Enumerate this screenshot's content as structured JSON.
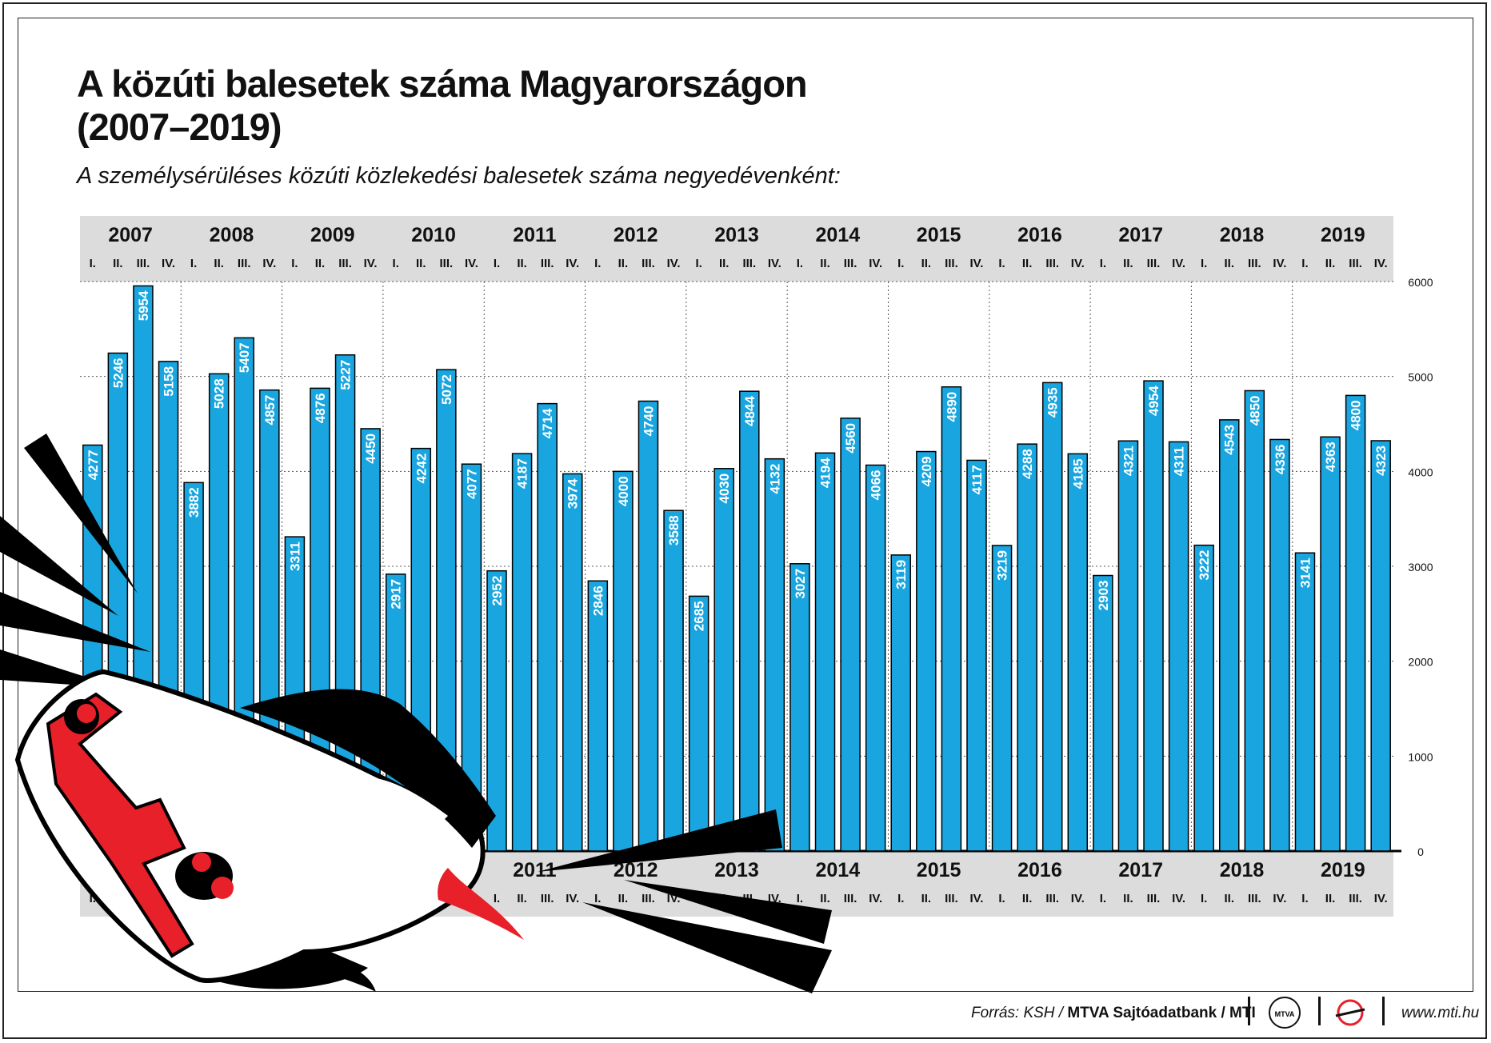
{
  "title_line1": "A közúti balesetek száma Magyarországon",
  "title_line2": "(2007–2019)",
  "subtitle": "A személysérüléses közúti közlekedési balesetek száma negyedévenként:",
  "footer": {
    "source_prefix": "Forrás: KSH /",
    "source_bold": "MTVA Sajtóadatbank",
    "source_suffix": "/ MTI",
    "mtva_logo": "MTVA",
    "website": "www.mti.hu"
  },
  "colors": {
    "bar": "#19a6e0",
    "band": "#dcdcdc",
    "accent_red": "#e8202a"
  },
  "chart_data": {
    "type": "bar",
    "years": [
      "2007",
      "2008",
      "2009",
      "2010",
      "2011",
      "2012",
      "2013",
      "2014",
      "2015",
      "2016",
      "2017",
      "2018",
      "2019"
    ],
    "quarters": [
      "I.",
      "II.",
      "III.",
      "IV."
    ],
    "values": [
      [
        4277,
        5246,
        5954,
        5158
      ],
      [
        3882,
        5028,
        5407,
        4857
      ],
      [
        3311,
        4876,
        5227,
        4450
      ],
      [
        2917,
        4242,
        5072,
        4077
      ],
      [
        2952,
        4187,
        4714,
        3974
      ],
      [
        2846,
        4000,
        4740,
        3588
      ],
      [
        2685,
        4030,
        4844,
        4132
      ],
      [
        3027,
        4194,
        4560,
        4066
      ],
      [
        3119,
        4209,
        4890,
        4117
      ],
      [
        3219,
        4288,
        4935,
        4185
      ],
      [
        2903,
        4321,
        4954,
        4311
      ],
      [
        3222,
        4543,
        4850,
        4336
      ],
      [
        3141,
        4363,
        4800,
        4323
      ]
    ],
    "ylim": [
      0,
      6000
    ],
    "yticks": [
      "6000",
      "5000",
      "4000",
      "3000",
      "2000",
      "1000",
      "0"
    ],
    "grid": true
  }
}
